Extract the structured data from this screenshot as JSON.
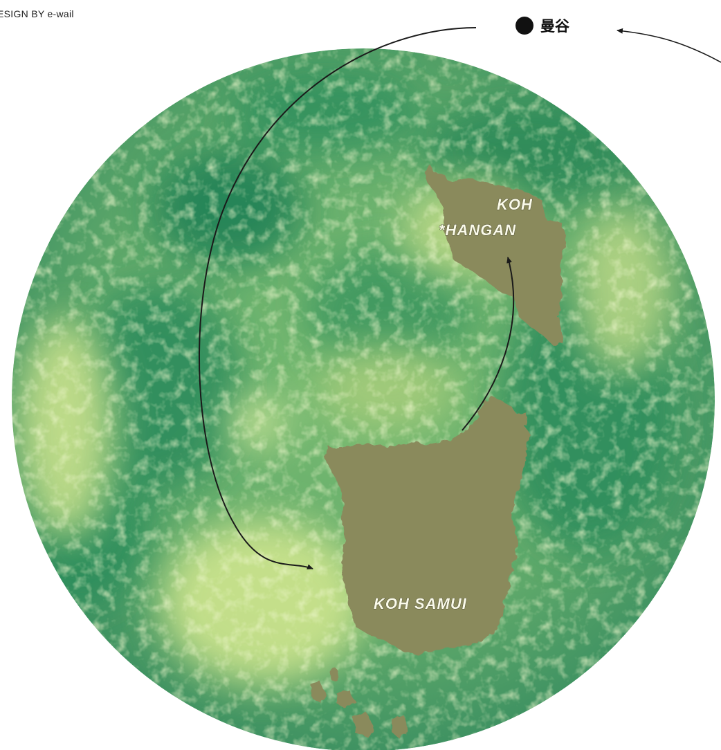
{
  "credit": "ESIGN BY e-wail",
  "city": {
    "name": "曼谷",
    "icon": "filled-circle-marker"
  },
  "islands": {
    "phangan": {
      "line1": "KOH",
      "line2": "*HANGAN"
    },
    "samui": {
      "label": "KOH SAMUI"
    }
  },
  "colors": {
    "moon_base": "#6faf6a",
    "moon_dark": "#2a8a5a",
    "moon_light": "#d8ec9a",
    "island_fill": "#8c8c5e",
    "route_line": "#1a1a1a"
  }
}
